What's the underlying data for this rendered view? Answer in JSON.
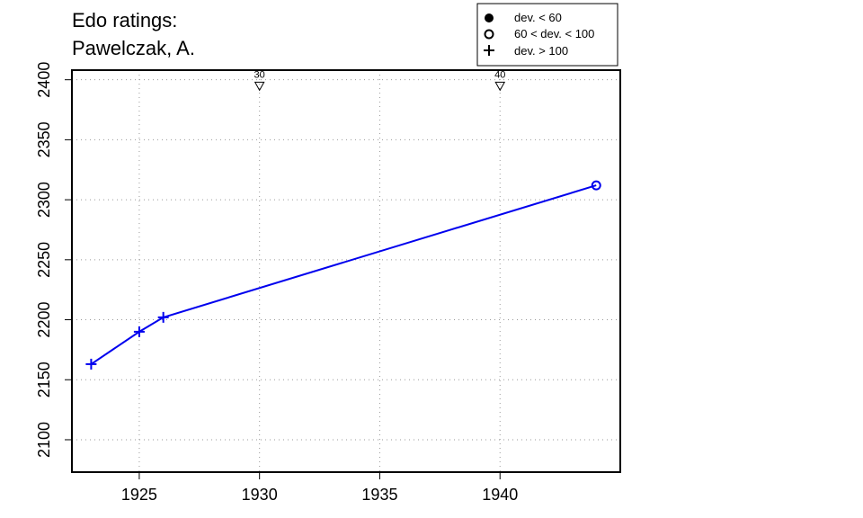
{
  "title": {
    "line1": "Edo ratings:",
    "line2": "Pawelczak, A."
  },
  "legend": {
    "items": [
      {
        "symbol": "filled-circle",
        "label": "dev. < 60"
      },
      {
        "symbol": "open-circle",
        "label": "60 < dev. < 100"
      },
      {
        "symbol": "plus",
        "label": "dev. > 100"
      }
    ]
  },
  "colors": {
    "series": "#0000ee",
    "grid": "#9a9a9a",
    "axis": "#000000"
  },
  "chart_data": {
    "type": "line",
    "title": "Edo ratings: Pawelczak, A.",
    "xlim": [
      1922.2,
      1945
    ],
    "ylim": [
      2073,
      2408
    ],
    "x_ticks": [
      1925,
      1930,
      1935,
      1940
    ],
    "y_ticks": [
      2100,
      2150,
      2200,
      2250,
      2300,
      2350,
      2400
    ],
    "grid": true,
    "legend_position": "top-right",
    "series": [
      {
        "points": [
          {
            "x": 1923,
            "y": 2163,
            "marker": "plus"
          },
          {
            "x": 1925,
            "y": 2190,
            "marker": "plus"
          },
          {
            "x": 1926,
            "y": 2202,
            "marker": "plus"
          },
          {
            "x": 1944,
            "y": 2312,
            "marker": "open-circle"
          }
        ]
      }
    ],
    "age_markers": [
      {
        "x": 1930,
        "label": "30"
      },
      {
        "x": 1940,
        "label": "40"
      }
    ],
    "age_marker_y": 2395
  }
}
